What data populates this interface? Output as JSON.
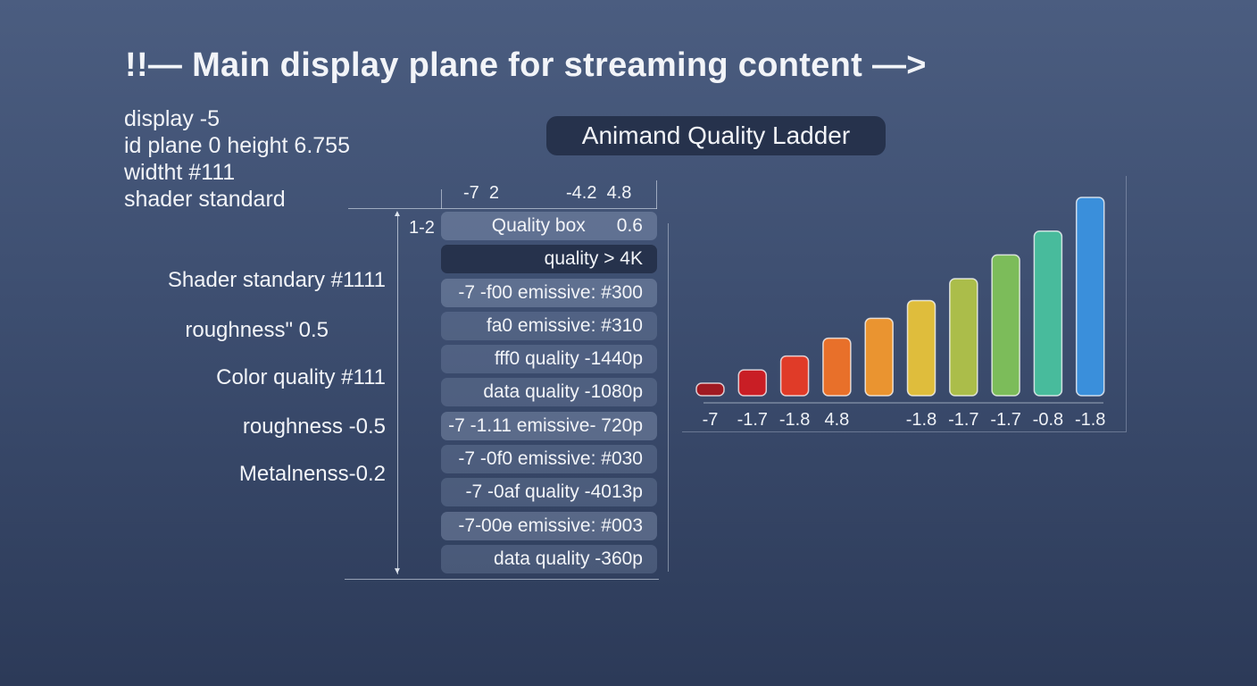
{
  "heading": "!!— Main display plane for streaming content —>",
  "meta": [
    "display -5",
    "id plane 0  height 6.755",
    "widtht #111",
    "shader standard"
  ],
  "properties": [
    "Shader standary #1111",
    "roughness\"  0.5",
    "Color quality  #111",
    "roughness -0.5",
    "Metalnenss-0.2"
  ],
  "ladder": {
    "top_labels": [
      "-7  2",
      "-4.2  4.8"
    ],
    "side_label": "1-2",
    "rows": [
      "Quality box      0.6",
      "quality >  4K",
      "-7 -f00 emissive: #300",
      "fa0 emissive: #310",
      "fff0 quality -1440p",
      "data quality -1080p",
      "-7 -1.11 emissive- 720p",
      "-7 -0f0 emissive: #030",
      "-7 -0af quality -4013p",
      "-7-00ɵ emissive: #003",
      "data quality -360p"
    ]
  },
  "chart_data": {
    "type": "bar",
    "title": "Animand Quality Ladder",
    "categories": [
      "-7",
      "-1.7",
      "-1.8",
      "4.8",
      "",
      "-1.8",
      "-1.7",
      "-1.7",
      "-0.8",
      "-1.8"
    ],
    "values": [
      6,
      13,
      20,
      29,
      39,
      48,
      59,
      71,
      83,
      100
    ],
    "colors": [
      "#a01a22",
      "#c91e25",
      "#e03b28",
      "#e8702a",
      "#ea9430",
      "#dfbd3c",
      "#abbd4a",
      "#7cbc5a",
      "#48bb9c",
      "#3a8fdb"
    ],
    "ylim": [
      0,
      100
    ],
    "grid": false,
    "legend": "none"
  }
}
